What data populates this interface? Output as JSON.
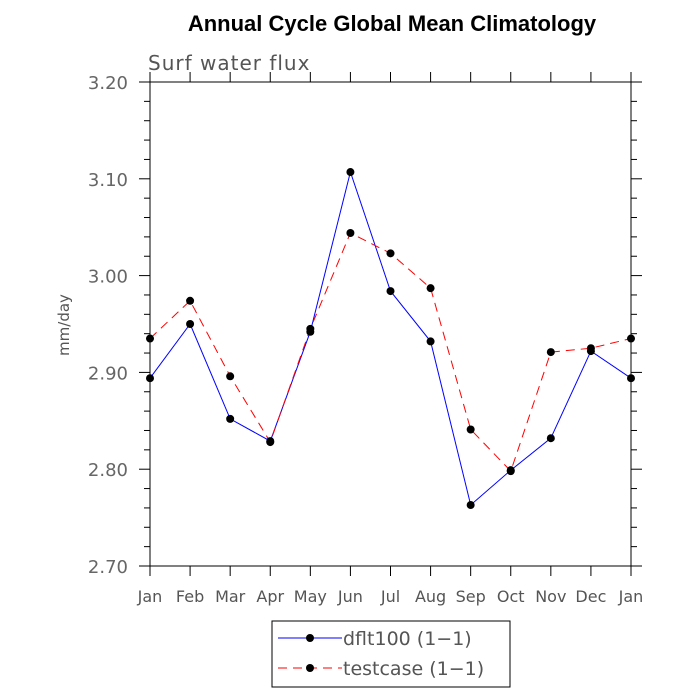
{
  "chart_data": {
    "type": "line",
    "title": "Annual Cycle Global Mean Climatology",
    "subtitle": "Surf water flux",
    "xlabel": "",
    "ylabel": "mm/day",
    "categories": [
      "Jan",
      "Feb",
      "Mar",
      "Apr",
      "May",
      "Jun",
      "Jul",
      "Aug",
      "Sep",
      "Oct",
      "Nov",
      "Dec",
      "Jan"
    ],
    "ylim": [
      2.7,
      3.2
    ],
    "yticks": [
      "2.70",
      "2.80",
      "2.90",
      "3.00",
      "3.10",
      "3.20"
    ],
    "grid": false,
    "legend_position": "bottom",
    "series": [
      {
        "name": "dflt100 (1−1)",
        "color": "#0000ff",
        "dash": "solid",
        "marker": "filled-circle",
        "values": [
          2.894,
          2.95,
          2.852,
          2.829,
          2.942,
          3.107,
          2.984,
          2.932,
          2.763,
          2.799,
          2.832,
          2.922,
          2.894
        ]
      },
      {
        "name": "testcase (1−1)",
        "color": "#ff0000",
        "dash": "dashed",
        "marker": "filled-circle",
        "values": [
          2.935,
          2.974,
          2.896,
          2.828,
          2.945,
          3.044,
          3.023,
          2.987,
          2.841,
          2.798,
          2.921,
          2.925,
          2.935
        ]
      }
    ]
  }
}
